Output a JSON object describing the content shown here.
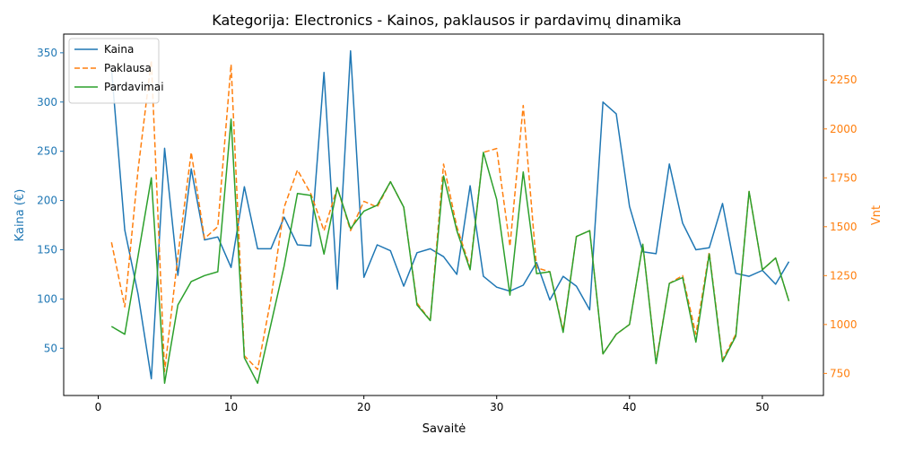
{
  "chart_data": {
    "type": "line",
    "title": "Kategorija: Electronics - Kainos, paklausos ir pardavimų dinamika",
    "xlabel": "Savaitė",
    "ylabel_left": "Kaina (€)",
    "ylabel_right": "Vnt",
    "xlim": [
      -2.6,
      54.6
    ],
    "ylim_left": [
      2,
      369
    ],
    "ylim_right": [
      637,
      2485
    ],
    "x_ticks": [
      0,
      10,
      20,
      30,
      40,
      50
    ],
    "y_left_ticks": [
      50,
      100,
      150,
      200,
      250,
      300,
      350
    ],
    "y_right_ticks": [
      750,
      1000,
      1250,
      1500,
      1750,
      2000,
      2250
    ],
    "grid": false,
    "legend_position": "top-left",
    "colors": {
      "price": "#1f77b4",
      "demand": "#ff7f0e",
      "sales": "#2ca02c",
      "axes": "#000000"
    },
    "x": [
      1,
      2,
      3,
      4,
      5,
      6,
      7,
      8,
      9,
      10,
      11,
      12,
      13,
      14,
      15,
      16,
      17,
      18,
      19,
      20,
      21,
      22,
      23,
      24,
      25,
      26,
      27,
      28,
      29,
      30,
      31,
      32,
      33,
      34,
      35,
      36,
      37,
      38,
      39,
      40,
      41,
      42,
      43,
      44,
      45,
      46,
      47,
      48,
      49,
      50,
      51,
      52
    ],
    "series": [
      {
        "name": "Kaina",
        "axis": "left",
        "style": "solid",
        "color": "#1f77b4",
        "values": [
          334,
          170,
          105,
          19,
          253,
          124,
          232,
          160,
          163,
          132,
          214,
          151,
          151,
          183,
          155,
          154,
          330,
          110,
          352,
          122,
          155,
          149,
          113,
          147,
          151,
          143,
          125,
          215,
          123,
          112,
          108,
          114,
          137,
          99,
          123,
          113,
          89,
          300,
          288,
          194,
          148,
          146,
          237,
          177,
          150,
          152,
          197,
          126,
          123,
          129,
          115,
          138
        ]
      },
      {
        "name": "Paklausa",
        "axis": "right",
        "style": "dashed",
        "color": "#ff7f0e",
        "values": [
          1420,
          1090,
          1790,
          2350,
          760,
          1350,
          1880,
          1440,
          1500,
          2330,
          840,
          770,
          1130,
          1600,
          1790,
          1670,
          1480,
          1700,
          1480,
          1630,
          1600,
          1730,
          1600,
          1110,
          1020,
          1820,
          1500,
          1290,
          1880,
          1900,
          1400,
          2120,
          1290,
          1270,
          970,
          1450,
          1480,
          850,
          950,
          1000,
          1410,
          810,
          1210,
          1250,
          950,
          1370,
          820,
          950,
          1680,
          1280,
          1340,
          1120
        ]
      },
      {
        "name": "Pardavimai",
        "axis": "right",
        "style": "solid",
        "color": "#2ca02c",
        "values": [
          990,
          950,
          1350,
          1750,
          700,
          1100,
          1220,
          1250,
          1270,
          2050,
          830,
          700,
          1000,
          1300,
          1670,
          1660,
          1360,
          1700,
          1490,
          1580,
          1610,
          1730,
          1600,
          1100,
          1020,
          1760,
          1480,
          1280,
          1880,
          1640,
          1150,
          1780,
          1260,
          1270,
          960,
          1450,
          1480,
          850,
          950,
          1000,
          1410,
          800,
          1210,
          1240,
          910,
          1360,
          810,
          940,
          1680,
          1280,
          1340,
          1120
        ]
      }
    ]
  }
}
